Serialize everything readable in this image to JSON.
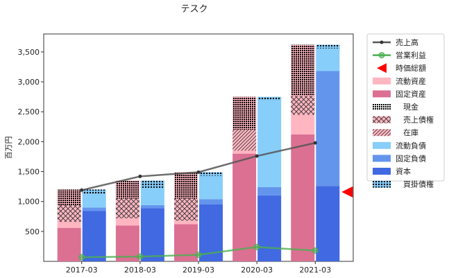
{
  "chart_data": {
    "type": "bar",
    "title": "テスク",
    "ylabel": "百万円",
    "xlabel": "",
    "ylim": [
      0,
      3800
    ],
    "yticks": [
      500,
      1000,
      1500,
      2000,
      2500,
      3000,
      3500
    ],
    "ytick_labels": [
      "500",
      "1,000",
      "1,500",
      "2,000",
      "2,500",
      "3,000",
      "3,500"
    ],
    "categories": [
      "2017-03",
      "2018-03",
      "2019-03",
      "2020-03",
      "2021-03"
    ],
    "assets": {
      "current_assets": [
        640,
        750,
        870,
        950,
        1500
      ],
      "fixed_assets": [
        560,
        600,
        620,
        1800,
        2120
      ],
      "cash": [
        260,
        300,
        440,
        550,
        850
      ],
      "receivables": [
        280,
        330,
        370,
        0,
        320
      ],
      "inventory": [
        0,
        0,
        0,
        350,
        0
      ]
    },
    "liabilities": {
      "current_liabilities": [
        300,
        410,
        450,
        1510,
        440
      ],
      "fixed_liabilities": [
        60,
        50,
        90,
        140,
        1920
      ],
      "equity": [
        840,
        890,
        950,
        1100,
        1260
      ],
      "payables": [
        70,
        120,
        60,
        60,
        60
      ]
    },
    "sales": [
      1190,
      1420,
      1490,
      1760,
      1980
    ],
    "operating_profit": [
      70,
      80,
      110,
      240,
      180
    ],
    "market_cap": 1160,
    "legend": {
      "placement": "outside-right",
      "sales": "売上高",
      "operating_profit": "営業利益",
      "market_cap": "時価総額",
      "current_assets": "流動資産",
      "fixed_assets": "固定資産",
      "cash": "　現金",
      "receivables": "　売上債権",
      "inventory": "　在庫",
      "current_liabilities": "流動負債",
      "fixed_liabilities": "固定負債",
      "equity": "資本",
      "payables": "　買掛債権"
    },
    "colors": {
      "current_assets": "#ffb6c1",
      "fixed_assets": "#db7093",
      "current_liabilities": "#87cefa",
      "fixed_liabilities": "#6495ed",
      "equity": "#4169e1",
      "sales_line": "#555555",
      "profit_line": "#4caf50",
      "market_cap": "#ff0000"
    },
    "grid": false
  }
}
